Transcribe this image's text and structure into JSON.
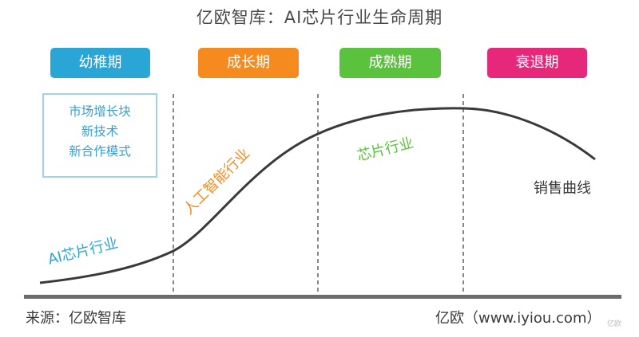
{
  "title": "亿欧智库：AI芯片行业生命周期",
  "stages": [
    {
      "label": "幼稚期",
      "color": "#2aa6d6"
    },
    {
      "label": "成长期",
      "color": "#f58a1f"
    },
    {
      "label": "成熟期",
      "color": "#5ac23c"
    },
    {
      "label": "衰退期",
      "color": "#e7287a"
    }
  ],
  "features": [
    "市场增长块",
    "新技术",
    "新合作模式"
  ],
  "curve_labels": {
    "infant": "AI芯片行业",
    "growth": "人工智能行业",
    "mature": "芯片行业",
    "sales": "销售曲线"
  },
  "colors": {
    "curve": "#3a3a3a",
    "axis": "#6b6b6b",
    "divider": "#555555",
    "infant_text": "#2aa6d6",
    "growth_text": "#f58a1f",
    "mature_text": "#5ac23c",
    "sales_text": "#3a3a3a"
  },
  "footer": {
    "source": "来源：亿欧智库",
    "credit": "亿欧（www.iyiou.com）"
  },
  "watermark": "亿欧"
}
